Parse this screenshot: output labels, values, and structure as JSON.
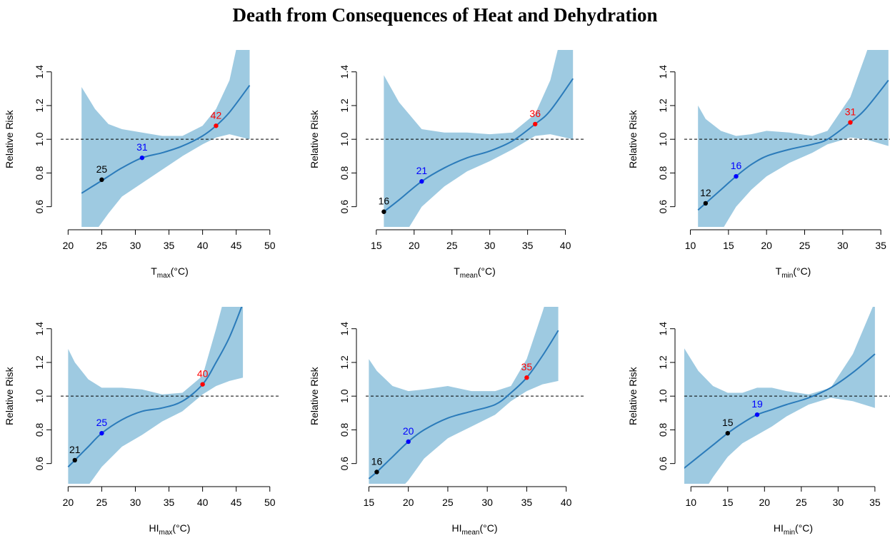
{
  "title": "Death from Consequences of Heat and Dehydration",
  "chart_data": [
    {
      "type": "line",
      "xlabel": "T",
      "xlabel_sub": "max",
      "xlabel_unit": "(°C)",
      "ylabel": "Relative Risk",
      "xlim": [
        18.9,
        51.3
      ],
      "ylim": [
        0.48,
        1.53
      ],
      "xticks": [
        20,
        25,
        30,
        35,
        40,
        45,
        50
      ],
      "yticks": [
        0.6,
        0.8,
        {
          "value": 1,
          "label": "1.0"
        },
        1.2,
        1.4
      ],
      "hline": 1,
      "line_color": "#2b7bba",
      "band_color": "#9ecae1",
      "x": [
        22,
        24,
        26,
        28,
        31,
        34,
        37,
        40,
        42,
        44,
        47
      ],
      "values": [
        0.68,
        0.73,
        0.78,
        0.83,
        0.89,
        0.92,
        0.96,
        1.02,
        1.08,
        1.16,
        1.32
      ],
      "upper": [
        1.31,
        1.18,
        1.09,
        1.06,
        1.04,
        1.02,
        1.02,
        1.08,
        1.18,
        1.35,
        1.9
      ],
      "lower": [
        0.3,
        0.45,
        0.56,
        0.66,
        0.74,
        0.82,
        0.9,
        0.97,
        1.01,
        1.03,
        1.0
      ],
      "points": [
        {
          "x": 25,
          "y": 0.76,
          "color": "#000000"
        },
        {
          "x": 31,
          "y": 0.89,
          "color": "#0000ff"
        },
        {
          "x": 42,
          "y": 1.08,
          "color": "#ff0000"
        }
      ]
    },
    {
      "type": "line",
      "xlabel": "T",
      "xlabel_sub": "mean",
      "xlabel_unit": "(°C)",
      "ylabel": "Relative Risk",
      "xlim": [
        13.6,
        42.4
      ],
      "ylim": [
        0.48,
        1.53
      ],
      "xticks": [
        15,
        20,
        25,
        30,
        35,
        40
      ],
      "yticks": [
        0.6,
        0.8,
        {
          "value": 1,
          "label": "1.0"
        },
        1.2,
        1.4
      ],
      "hline": 1,
      "line_color": "#2b7bba",
      "band_color": "#9ecae1",
      "x": [
        16,
        18,
        21,
        24,
        27,
        30,
        33,
        36,
        38,
        41
      ],
      "values": [
        0.57,
        0.64,
        0.75,
        0.83,
        0.89,
        0.93,
        0.99,
        1.09,
        1.17,
        1.36
      ],
      "upper": [
        1.38,
        1.22,
        1.06,
        1.04,
        1.04,
        1.03,
        1.04,
        1.15,
        1.35,
        1.9
      ],
      "lower": [
        0.2,
        0.38,
        0.6,
        0.72,
        0.81,
        0.87,
        0.94,
        1.02,
        1.03,
        1.0
      ],
      "points": [
        {
          "x": 16,
          "y": 0.57,
          "color": "#000000"
        },
        {
          "x": 21,
          "y": 0.75,
          "color": "#0000ff"
        },
        {
          "x": 36,
          "y": 1.09,
          "color": "#ff0000"
        }
      ]
    },
    {
      "type": "line",
      "xlabel": "T",
      "xlabel_sub": "min",
      "xlabel_unit": "(°C)",
      "ylabel": "Relative Risk",
      "xlim": [
        9.2,
        37.8
      ],
      "ylim": [
        0.48,
        1.53
      ],
      "xticks": [
        10,
        15,
        20,
        25,
        30,
        35
      ],
      "yticks": [
        0.6,
        0.8,
        {
          "value": 1,
          "label": "1.0"
        },
        1.2,
        1.4
      ],
      "hline": 1,
      "line_color": "#2b7bba",
      "band_color": "#9ecae1",
      "x": [
        11,
        12,
        14,
        16,
        18,
        20,
        23,
        26,
        28,
        31,
        33,
        36
      ],
      "values": [
        0.58,
        0.62,
        0.7,
        0.78,
        0.85,
        0.9,
        0.94,
        0.97,
        1.0,
        1.1,
        1.18,
        1.35
      ],
      "upper": [
        1.2,
        1.12,
        1.05,
        1.02,
        1.03,
        1.05,
        1.04,
        1.02,
        1.05,
        1.25,
        1.5,
        1.9
      ],
      "lower": [
        0.2,
        0.3,
        0.45,
        0.6,
        0.7,
        0.78,
        0.86,
        0.92,
        0.97,
        1.01,
        1.0,
        0.96
      ],
      "points": [
        {
          "x": 12,
          "y": 0.62,
          "color": "#000000"
        },
        {
          "x": 16,
          "y": 0.78,
          "color": "#0000ff"
        },
        {
          "x": 31,
          "y": 1.1,
          "color": "#ff0000"
        }
      ]
    },
    {
      "type": "line",
      "xlabel": "HI",
      "xlabel_sub": "max",
      "xlabel_unit": "(°C)",
      "ylabel": "Relative Risk",
      "xlim": [
        18.9,
        51.3
      ],
      "ylim": [
        0.48,
        1.53
      ],
      "xticks": [
        20,
        25,
        30,
        35,
        40,
        45,
        50
      ],
      "yticks": [
        0.6,
        0.8,
        {
          "value": 1,
          "label": "1.0"
        },
        1.2,
        1.4
      ],
      "hline": 1,
      "line_color": "#2b7bba",
      "band_color": "#9ecae1",
      "x": [
        20,
        21,
        23,
        25,
        28,
        31,
        34,
        37,
        40,
        42,
        44,
        46
      ],
      "values": [
        0.58,
        0.62,
        0.7,
        0.78,
        0.86,
        0.91,
        0.93,
        0.97,
        1.07,
        1.2,
        1.35,
        1.55
      ],
      "upper": [
        1.28,
        1.2,
        1.1,
        1.05,
        1.05,
        1.04,
        1.01,
        1.02,
        1.12,
        1.4,
        1.7,
        2.0
      ],
      "lower": [
        0.3,
        0.38,
        0.47,
        0.58,
        0.7,
        0.77,
        0.85,
        0.91,
        1.01,
        1.06,
        1.09,
        1.11
      ],
      "points": [
        {
          "x": 21,
          "y": 0.62,
          "color": "#000000"
        },
        {
          "x": 25,
          "y": 0.78,
          "color": "#0000ff"
        },
        {
          "x": 40,
          "y": 1.07,
          "color": "#ff0000"
        }
      ]
    },
    {
      "type": "line",
      "xlabel": "HI",
      "xlabel_sub": "mean",
      "xlabel_unit": "(°C)",
      "ylabel": "Relative Risk",
      "xlim": [
        14.6,
        42.2
      ],
      "ylim": [
        0.48,
        1.53
      ],
      "xticks": [
        15,
        20,
        25,
        30,
        35,
        40
      ],
      "yticks": [
        0.6,
        0.8,
        {
          "value": 1,
          "label": "1.0"
        },
        1.2,
        1.4
      ],
      "hline": 1,
      "line_color": "#2b7bba",
      "band_color": "#9ecae1",
      "x": [
        15,
        16,
        18,
        20,
        22,
        25,
        28,
        31,
        33,
        35,
        37,
        39
      ],
      "values": [
        0.51,
        0.55,
        0.64,
        0.73,
        0.8,
        0.87,
        0.91,
        0.95,
        1.02,
        1.11,
        1.24,
        1.39
      ],
      "upper": [
        1.22,
        1.15,
        1.06,
        1.03,
        1.04,
        1.06,
        1.03,
        1.03,
        1.06,
        1.22,
        1.5,
        1.8
      ],
      "lower": [
        0.2,
        0.28,
        0.4,
        0.5,
        0.63,
        0.75,
        0.82,
        0.89,
        0.97,
        1.03,
        1.07,
        1.09
      ],
      "points": [
        {
          "x": 16,
          "y": 0.55,
          "color": "#000000"
        },
        {
          "x": 20,
          "y": 0.73,
          "color": "#0000ff"
        },
        {
          "x": 35,
          "y": 1.11,
          "color": "#ff0000"
        }
      ]
    },
    {
      "type": "line",
      "xlabel": "HI",
      "xlabel_sub": "min",
      "xlabel_unit": "(°C)",
      "ylabel": "Relative Risk",
      "xlim": [
        9.1,
        38.7
      ],
      "ylim": [
        0.48,
        1.53
      ],
      "xticks": [
        10,
        15,
        20,
        25,
        30,
        35
      ],
      "yticks": [
        0.6,
        0.8,
        {
          "value": 1,
          "label": "1.0"
        },
        1.2,
        1.4
      ],
      "hline": 1,
      "line_color": "#2b7bba",
      "band_color": "#9ecae1",
      "x": [
        9,
        11,
        13,
        15,
        17,
        19,
        21,
        23,
        26,
        29,
        32,
        35
      ],
      "values": [
        0.57,
        0.64,
        0.71,
        0.78,
        0.84,
        0.89,
        0.92,
        0.95,
        0.99,
        1.05,
        1.14,
        1.25
      ],
      "upper": [
        1.29,
        1.15,
        1.06,
        1.02,
        1.02,
        1.05,
        1.05,
        1.03,
        1.01,
        1.05,
        1.25,
        1.56
      ],
      "lower": [
        0.25,
        0.38,
        0.52,
        0.64,
        0.72,
        0.77,
        0.82,
        0.88,
        0.95,
        0.99,
        0.97,
        0.93
      ],
      "points": [
        {
          "x": 15,
          "y": 0.78,
          "color": "#000000"
        },
        {
          "x": 19,
          "y": 0.89,
          "color": "#0000ff"
        }
      ]
    }
  ]
}
